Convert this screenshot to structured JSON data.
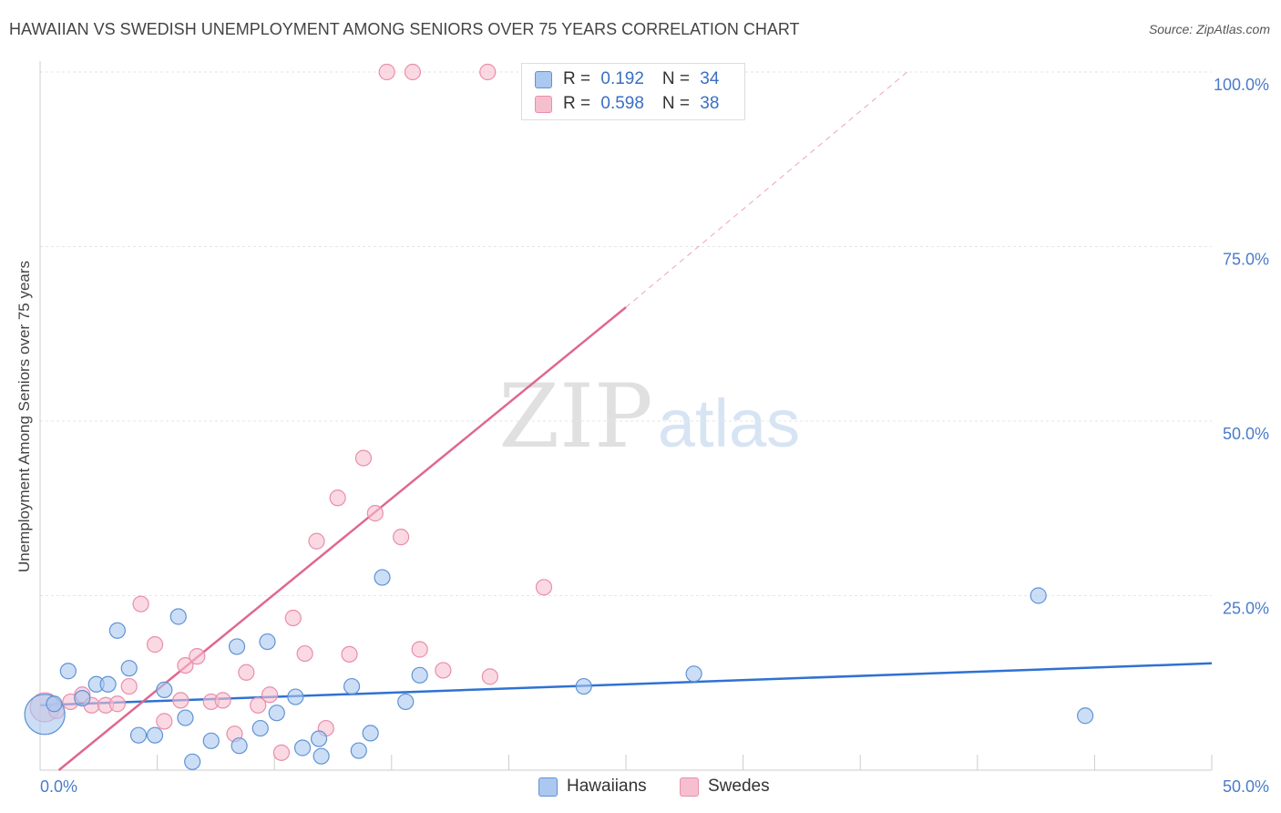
{
  "title": "HAWAIIAN VS SWEDISH UNEMPLOYMENT AMONG SENIORS OVER 75 YEARS CORRELATION CHART",
  "source": "Source: ZipAtlas.com",
  "watermark": {
    "zip": "ZIP",
    "atlas": "atlas"
  },
  "colors": {
    "hawaiians_fill": "#aac8f0",
    "hawaiians_stroke": "#5f93d6",
    "hawaiians_line": "#2f72d1",
    "swedes_fill": "#f6bfd0",
    "swedes_stroke": "#e98eab",
    "swedes_line": "#e0678f",
    "tick_label": "#4a7cc9"
  },
  "legend": {
    "rows": [
      {
        "r_label": "R = ",
        "r_value": "0.192",
        "n_label": "N = ",
        "n_value": "34"
      },
      {
        "r_label": "R = ",
        "r_value": "0.598",
        "n_label": "N = ",
        "n_value": "38"
      }
    ]
  },
  "bottom_legend": {
    "hawaiians": "Hawaiians",
    "swedes": "Swedes"
  },
  "chart_data": {
    "type": "scatter",
    "title": "HAWAIIAN VS SWEDISH UNEMPLOYMENT AMONG SENIORS OVER 75 YEARS CORRELATION CHART",
    "xlabel": "",
    "ylabel": "Unemployment Among Seniors over 75 years",
    "xlim": [
      0,
      50
    ],
    "ylim": [
      0,
      100
    ],
    "x_tick_labels": [
      "0.0%",
      "50.0%"
    ],
    "y_ticks": [
      25,
      50,
      75,
      100
    ],
    "y_tick_labels": [
      "25.0%",
      "50.0%",
      "75.0%",
      "100.0%"
    ],
    "grid": true,
    "legend_position": "top-center",
    "series": [
      {
        "name": "Hawaiians",
        "points": [
          [
            0.2,
            8.0,
            22
          ],
          [
            0.6,
            9.5,
            10
          ],
          [
            1.2,
            14.2,
            10
          ],
          [
            1.8,
            10.3,
            10
          ],
          [
            2.4,
            12.3,
            10
          ],
          [
            2.9,
            12.3,
            10
          ],
          [
            3.3,
            20.0,
            10
          ],
          [
            3.8,
            14.6,
            10
          ],
          [
            4.2,
            5.0,
            10
          ],
          [
            4.9,
            5.0,
            10
          ],
          [
            5.3,
            11.5,
            10
          ],
          [
            5.9,
            22.0,
            10
          ],
          [
            6.2,
            7.5,
            10
          ],
          [
            6.5,
            1.2,
            10
          ],
          [
            7.3,
            4.2,
            10
          ],
          [
            8.4,
            17.7,
            10
          ],
          [
            8.5,
            3.5,
            10
          ],
          [
            9.4,
            6.0,
            10
          ],
          [
            9.7,
            18.4,
            10
          ],
          [
            10.1,
            8.2,
            10
          ],
          [
            10.9,
            10.5,
            10
          ],
          [
            11.2,
            3.2,
            10
          ],
          [
            11.9,
            4.5,
            10
          ],
          [
            12.0,
            2.0,
            10
          ],
          [
            13.3,
            12.0,
            10
          ],
          [
            13.6,
            2.8,
            10
          ],
          [
            14.1,
            5.3,
            10
          ],
          [
            14.6,
            27.6,
            10
          ],
          [
            15.6,
            9.8,
            10
          ],
          [
            16.2,
            13.6,
            10
          ],
          [
            23.2,
            12.0,
            10
          ],
          [
            27.9,
            13.8,
            10
          ],
          [
            42.6,
            25.0,
            10
          ],
          [
            44.6,
            7.8,
            10
          ]
        ],
        "trend": {
          "x": [
            0,
            50
          ],
          "y": [
            9.3,
            15.3
          ]
        }
      },
      {
        "name": "Swedes",
        "points": [
          [
            0.2,
            9.0,
            16
          ],
          [
            0.7,
            8.5,
            10
          ],
          [
            1.3,
            9.8,
            10
          ],
          [
            1.8,
            10.8,
            10
          ],
          [
            2.2,
            9.3,
            10
          ],
          [
            2.8,
            9.3,
            10
          ],
          [
            3.3,
            9.5,
            10
          ],
          [
            3.8,
            12.0,
            10
          ],
          [
            4.3,
            23.8,
            10
          ],
          [
            4.9,
            18.0,
            10
          ],
          [
            5.3,
            7.0,
            10
          ],
          [
            6.0,
            10.0,
            10
          ],
          [
            6.2,
            15.0,
            10
          ],
          [
            6.7,
            16.3,
            10
          ],
          [
            7.3,
            9.8,
            10
          ],
          [
            7.8,
            10.0,
            10
          ],
          [
            8.3,
            5.2,
            10
          ],
          [
            8.8,
            14.0,
            10
          ],
          [
            9.3,
            9.3,
            10
          ],
          [
            9.8,
            10.8,
            10
          ],
          [
            10.3,
            2.5,
            10
          ],
          [
            10.8,
            21.8,
            10
          ],
          [
            11.3,
            16.7,
            10
          ],
          [
            11.8,
            32.8,
            10
          ],
          [
            12.2,
            6.0,
            10
          ],
          [
            12.7,
            39.0,
            10
          ],
          [
            13.2,
            16.6,
            10
          ],
          [
            13.8,
            44.7,
            10
          ],
          [
            14.3,
            36.8,
            10
          ],
          [
            14.8,
            100.0,
            10
          ],
          [
            15.4,
            33.4,
            10
          ],
          [
            15.9,
            100.0,
            10
          ],
          [
            16.2,
            17.3,
            10
          ],
          [
            17.2,
            14.3,
            10
          ],
          [
            19.1,
            100.0,
            10
          ],
          [
            19.2,
            13.4,
            10
          ],
          [
            21.5,
            26.2,
            10
          ],
          [
            23.7,
            100.0,
            10
          ]
        ],
        "trend": {
          "x": [
            0.8,
            25.0
          ],
          "y": [
            0.0,
            66.3
          ]
        },
        "trend_extension": {
          "x": [
            25.0,
            37.0
          ],
          "y": [
            66.3,
            100.0
          ]
        }
      }
    ]
  }
}
